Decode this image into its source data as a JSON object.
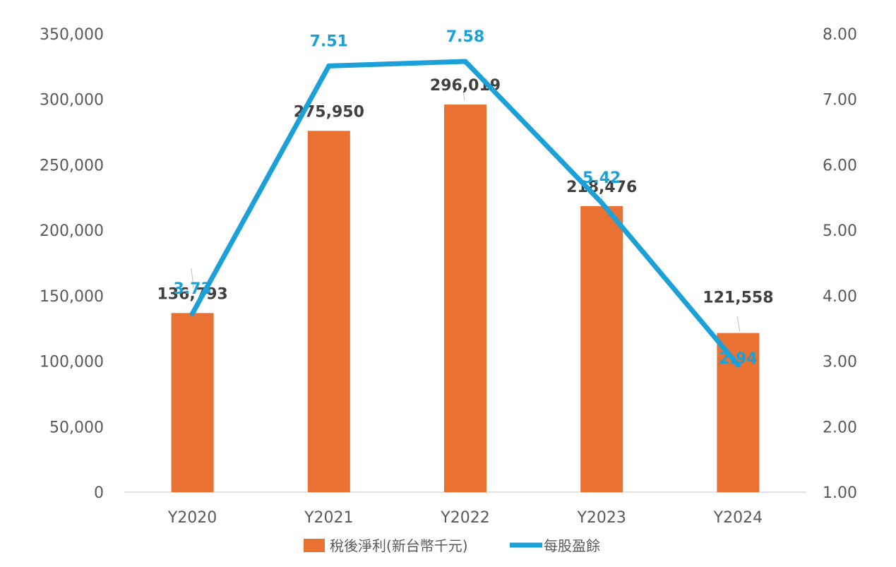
{
  "chart_data": {
    "type": "bar",
    "categories": [
      "Y2020",
      "Y2021",
      "Y2022",
      "Y2023",
      "Y2024"
    ],
    "series": [
      {
        "name": "稅後淨利(新台幣千元)",
        "type": "bar",
        "axis": "left",
        "values": [
          136793,
          275950,
          296019,
          218476,
          121558
        ],
        "labels": [
          "136,793",
          "275,950",
          "296,019",
          "218,476",
          "121,558"
        ],
        "color": "#E97132"
      },
      {
        "name": "每股盈餘",
        "type": "line",
        "axis": "right",
        "values": [
          3.73,
          7.51,
          7.58,
          5.42,
          2.94
        ],
        "labels": [
          "3.73",
          "7.51",
          "7.58",
          "5.42",
          "2.94"
        ],
        "color": "#1BA1D8"
      }
    ],
    "y_left": {
      "ylim": [
        0,
        350000
      ],
      "ticks": [
        0,
        50000,
        100000,
        150000,
        200000,
        250000,
        300000,
        350000
      ],
      "tick_labels": [
        "0",
        "50,000",
        "100,000",
        "150,000",
        "200,000",
        "250,000",
        "300,000",
        "350,000"
      ]
    },
    "y_right": {
      "ylim": [
        1,
        8
      ],
      "ticks": [
        1,
        2,
        3,
        4,
        5,
        6,
        7,
        8
      ],
      "tick_labels": [
        "1.00",
        "2.00",
        "3.00",
        "4.00",
        "5.00",
        "6.00",
        "7.00",
        "8.00"
      ]
    },
    "grid": false,
    "legend_position": "bottom"
  }
}
